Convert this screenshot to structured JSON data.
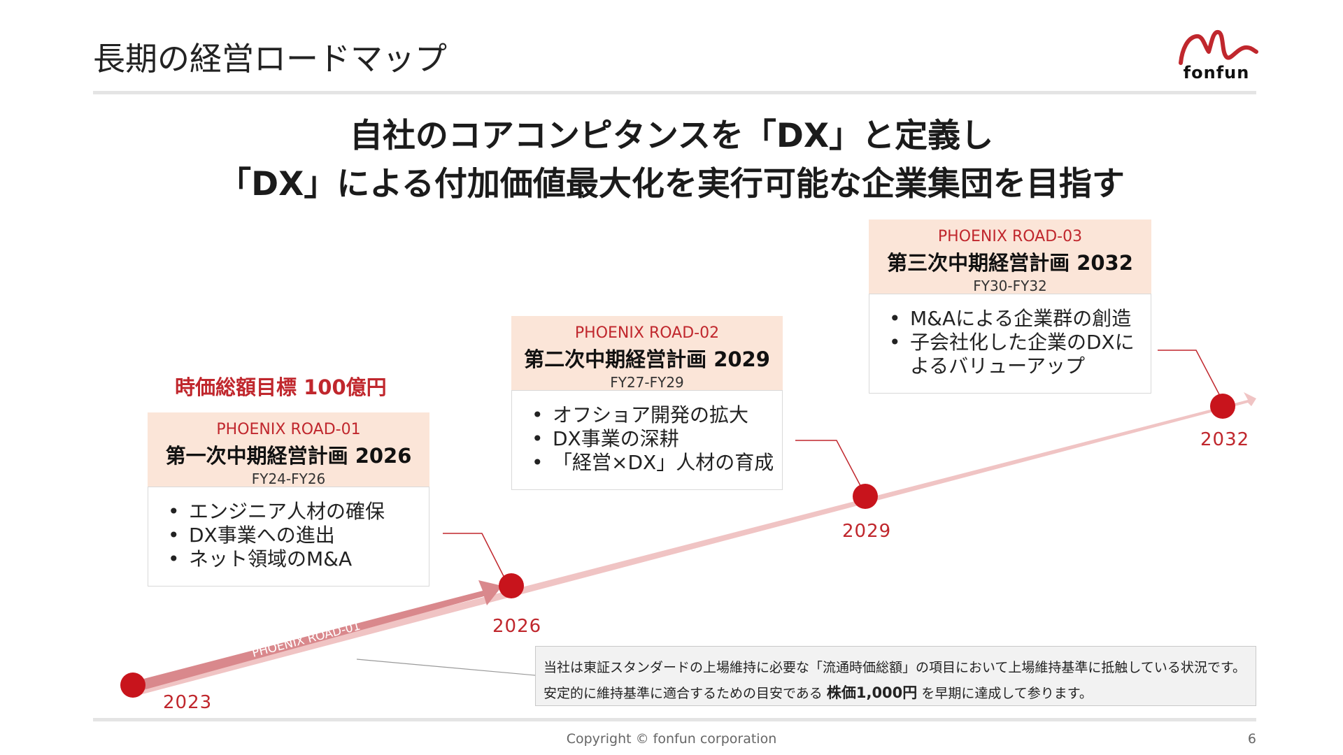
{
  "header": {
    "title": "長期の経営ロードマップ",
    "logo_text": "fonfun"
  },
  "headline": {
    "line1": "自社のコアコンピタンスを「DX」と定義し",
    "line2": "「DX」による付加価値最大化を実行可能な企業集団を目指す"
  },
  "target_label": "時価総額目標 100億円",
  "roadmap": {
    "arrow_label": "PHOENIX ROAD-01",
    "years": [
      "2023",
      "2026",
      "2029",
      "2032"
    ],
    "plans": [
      {
        "code": "PHOENIX ROAD-01",
        "title": "第一次中期経営計画 2026",
        "period": "FY24-FY26",
        "items": [
          "エンジニア人材の確保",
          "DX事業への進出",
          "ネット領域のM&A"
        ]
      },
      {
        "code": "PHOENIX ROAD-02",
        "title": "第二次中期経営計画 2029",
        "period": "FY27-FY29",
        "items": [
          "オフショア開発の拡大",
          "DX事業の深耕",
          "「経営×DX」人材の育成"
        ]
      },
      {
        "code": "PHOENIX ROAD-03",
        "title": "第三次中期経営計画 2032",
        "period": "FY30-FY32",
        "items": [
          "M&Aによる企業群の創造",
          "子会社化した企業のDXに",
          "よるバリューアップ"
        ]
      }
    ]
  },
  "note": {
    "line1": "当社は東証スタンダードの上場維持に必要な「流通時価総額」の項目において上場維持基準に抵触している状況です。",
    "line2_before": "安定的に維持基準に適合するための目安である ",
    "line2_bold": "株価1,000円",
    "line2_after": " を早期に達成して参ります。"
  },
  "footer": {
    "copyright": "Copyright © fonfun corporation",
    "page": "6"
  },
  "colors": {
    "accent": "#c0272d",
    "box_header": "#fbe5d8",
    "arrow_light": "#f0c4c4",
    "arrow_dark": "#d9888c"
  }
}
